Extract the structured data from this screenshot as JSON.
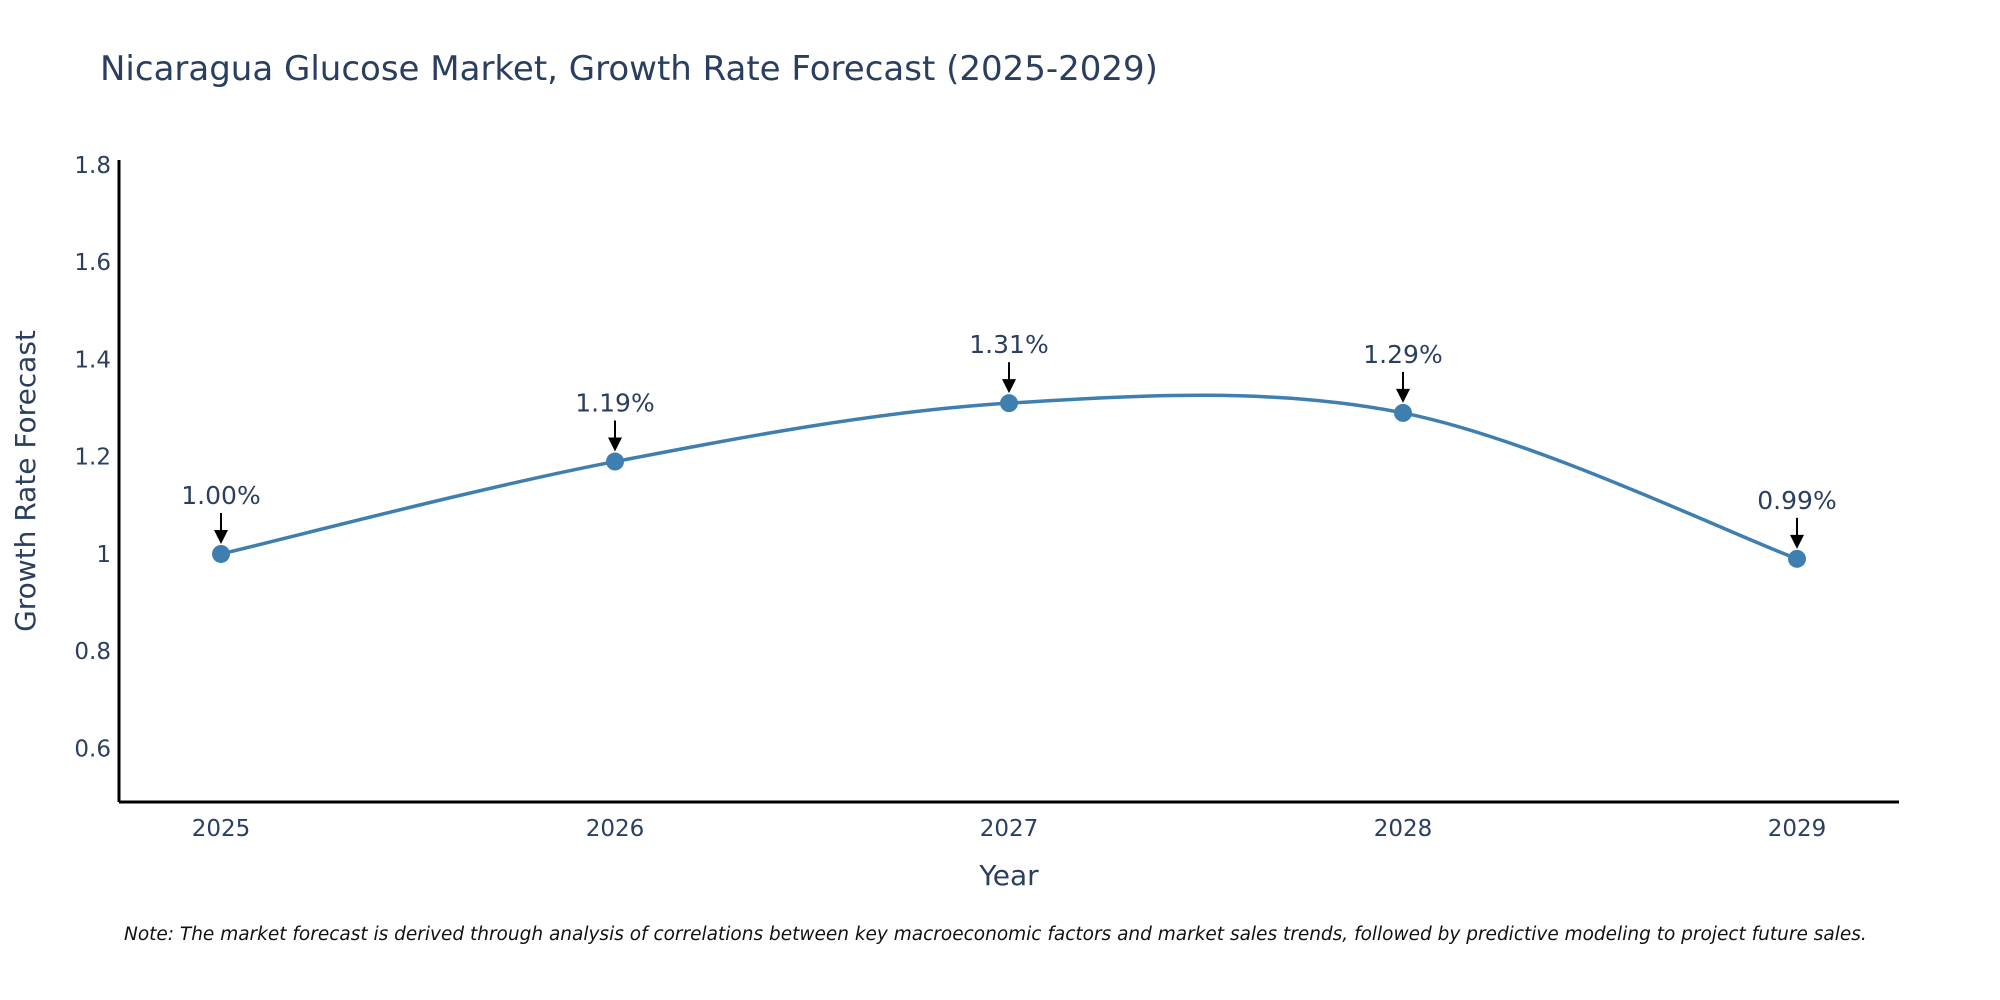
{
  "chart_data": {
    "type": "line",
    "title": "Nicaragua Glucose Market, Growth Rate Forecast (2025-2029)",
    "xlabel": "Year",
    "ylabel": "Growth Rate Forecast",
    "categories": [
      "2025",
      "2026",
      "2027",
      "2028",
      "2029"
    ],
    "values": [
      1.0,
      1.19,
      1.31,
      1.29,
      0.99
    ],
    "data_labels": [
      "1.00%",
      "1.19%",
      "1.31%",
      "1.29%",
      "0.99%"
    ],
    "ylim": [
      0.49,
      1.81
    ],
    "yticks": [
      0.6,
      0.8,
      1.0,
      1.2,
      1.4,
      1.6,
      1.8
    ],
    "ytick_labels": [
      "0.6",
      "0.8",
      "1",
      "1.2",
      "1.4",
      "1.6",
      "1.8"
    ],
    "grid": false,
    "line_shape": "spline",
    "line_color": "#3f7faf",
    "marker_color": "#3f7faf",
    "arrow_color": "#000000",
    "note": "Note: The market forecast is derived through analysis of correlations between key macroeconomic factors and market sales trends, followed by predictive modeling to project future sales."
  }
}
